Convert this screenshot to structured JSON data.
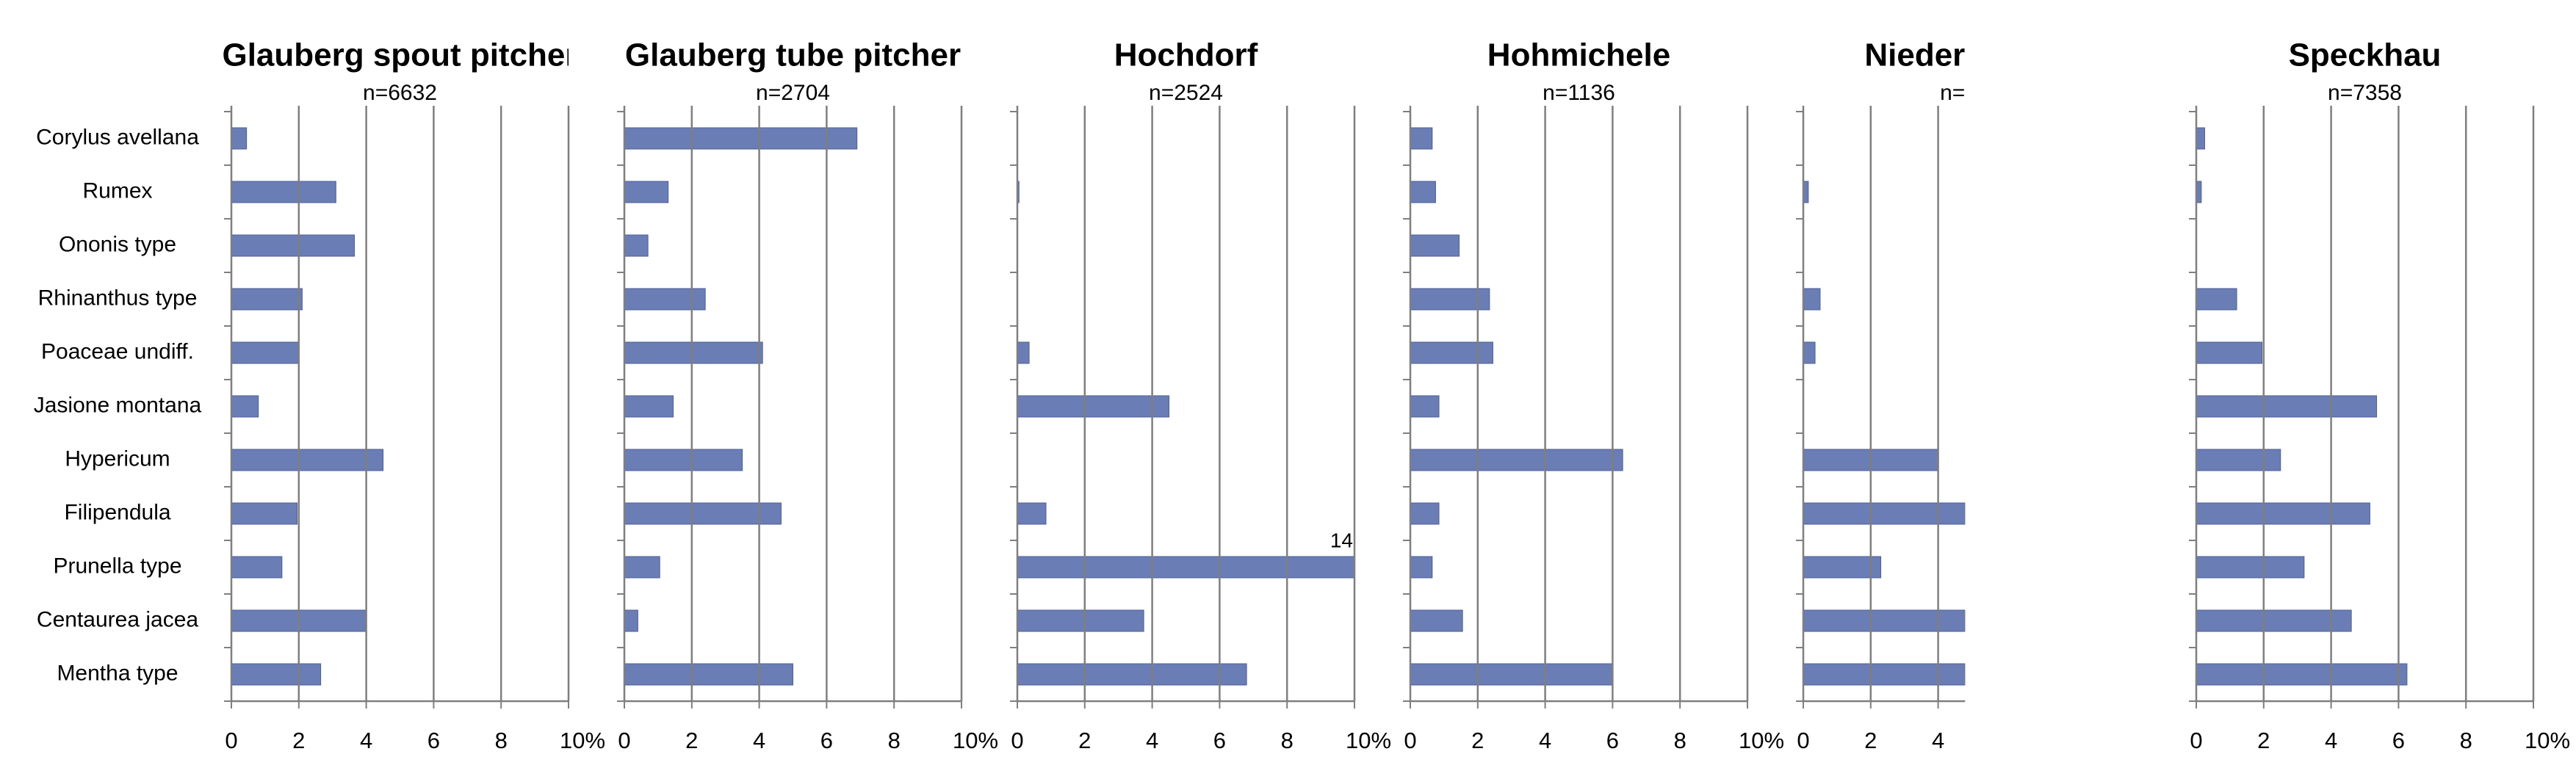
{
  "chart_data": [
    {
      "type": "bar",
      "title": "Glauberg spout pitcher",
      "subtitle": "n=6632",
      "categories": [
        "Corylus avellana",
        "Rumex",
        "Ononis type",
        "Rhinanthus type",
        "Poaceae undiff.",
        "Jasione montana",
        "Hypericum",
        "Filipendula",
        "Prunella type",
        "Centaurea jacea",
        "Mentha type"
      ],
      "values": [
        0.45,
        3.1,
        3.65,
        2.1,
        2.0,
        0.8,
        4.5,
        1.95,
        1.5,
        4.0,
        2.65
      ],
      "color": "#6a7db5",
      "xlim": [
        0,
        10
      ],
      "xticks": [
        0,
        2,
        4,
        6,
        8,
        {
          "value": 10,
          "label": "10%"
        }
      ],
      "grid": true
    },
    {
      "type": "bar",
      "title": "Glauberg tube pitcher",
      "subtitle": "n=2704",
      "values": [
        6.9,
        1.3,
        0.7,
        2.4,
        4.1,
        1.45,
        3.5,
        4.65,
        1.05,
        0.4,
        5.0
      ],
      "color": "#6a7db5",
      "xlim": [
        0,
        10
      ],
      "xticks": [
        0,
        2,
        4,
        6,
        8,
        {
          "value": 10,
          "label": "10%"
        }
      ],
      "grid": true
    },
    {
      "type": "bar",
      "title": "Hochdorf",
      "subtitle": "n=2524",
      "values": [
        0,
        0.05,
        0,
        0,
        0.35,
        4.5,
        0,
        0.85,
        14,
        3.75,
        6.8
      ],
      "color": "#6a7db5",
      "xlim": [
        0,
        10
      ],
      "xticks": [
        0,
        2,
        4,
        6,
        8,
        {
          "value": 10,
          "label": "10%"
        }
      ],
      "grid": true
    },
    {
      "type": "bar",
      "title": "Hohmichele",
      "subtitle": "n=1136",
      "values": [
        0.65,
        0.75,
        1.45,
        2.35,
        2.45,
        0.85,
        6.3,
        0.85,
        0.65,
        1.55,
        6.0
      ],
      "color": "#6a7db5",
      "xlim": [
        0,
        10
      ],
      "xticks": [
        0,
        2,
        4,
        6,
        8,
        {
          "value": 10,
          "label": "10%"
        }
      ],
      "grid": true
    },
    {
      "type": "bar",
      "title": "Nieder",
      "subtitle": "n=",
      "values": [
        0,
        0.15,
        0,
        0.5,
        0.35,
        0,
        4.0,
        4.8,
        2.3,
        4.8,
        4.8
      ],
      "color": "#6a7db5",
      "xlim": [
        0,
        4.8
      ],
      "xticks": [
        0,
        2,
        4
      ],
      "grid": true
    },
    {
      "type": "bar",
      "title": "Speckhau",
      "subtitle": "n=7358",
      "values": [
        0.25,
        0.15,
        0,
        1.2,
        1.95,
        5.35,
        2.5,
        5.15,
        3.2,
        4.6,
        6.25
      ],
      "color": "#6a7db5",
      "xlim": [
        0,
        10
      ],
      "xticks": [
        0,
        2,
        4,
        6,
        8,
        {
          "value": 10,
          "label": "10%"
        }
      ],
      "grid": true
    }
  ]
}
